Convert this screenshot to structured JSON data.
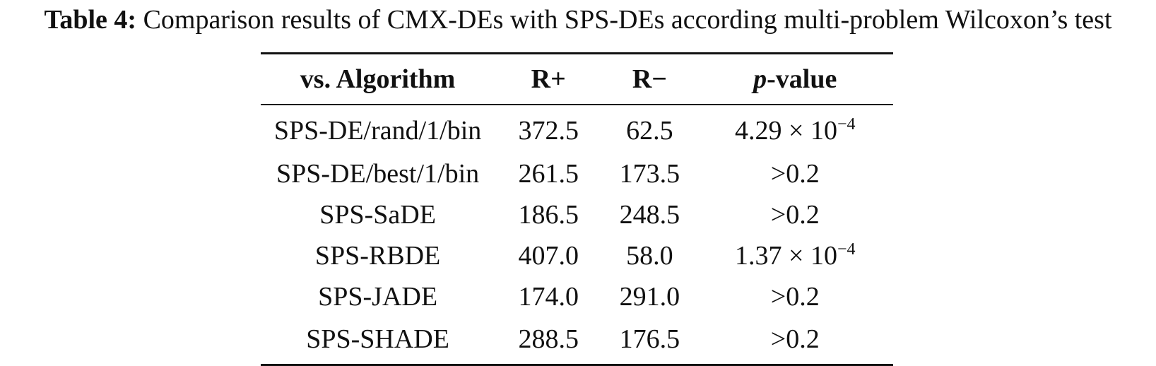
{
  "caption": {
    "label": "Table 4:",
    "text": "Comparison results of CMX-DEs with SPS-DEs according multi-problem Wilcoxon’s test"
  },
  "table": {
    "headers": {
      "algorithm": "vs. Algorithm",
      "r_plus": "R+",
      "r_minus": "R−",
      "p_italic": "p",
      "p_rest": "-value"
    },
    "rows": [
      {
        "algorithm": "SPS-DE/rand/1/bin",
        "r_plus": "372.5",
        "r_minus": "62.5",
        "p_base": "4.29 × 10",
        "p_exp": "−4"
      },
      {
        "algorithm": "SPS-DE/best/1/bin",
        "r_plus": "261.5",
        "r_minus": "173.5",
        "p_base": ">0.2",
        "p_exp": ""
      },
      {
        "algorithm": "SPS-SaDE",
        "r_plus": "186.5",
        "r_minus": "248.5",
        "p_base": ">0.2",
        "p_exp": ""
      },
      {
        "algorithm": "SPS-RBDE",
        "r_plus": "407.0",
        "r_minus": "58.0",
        "p_base": "1.37 × 10",
        "p_exp": "−4"
      },
      {
        "algorithm": "SPS-JADE",
        "r_plus": "174.0",
        "r_minus": "291.0",
        "p_base": ">0.2",
        "p_exp": ""
      },
      {
        "algorithm": "SPS-SHADE",
        "r_plus": "288.5",
        "r_minus": "176.5",
        "p_base": ">0.2",
        "p_exp": ""
      }
    ]
  }
}
